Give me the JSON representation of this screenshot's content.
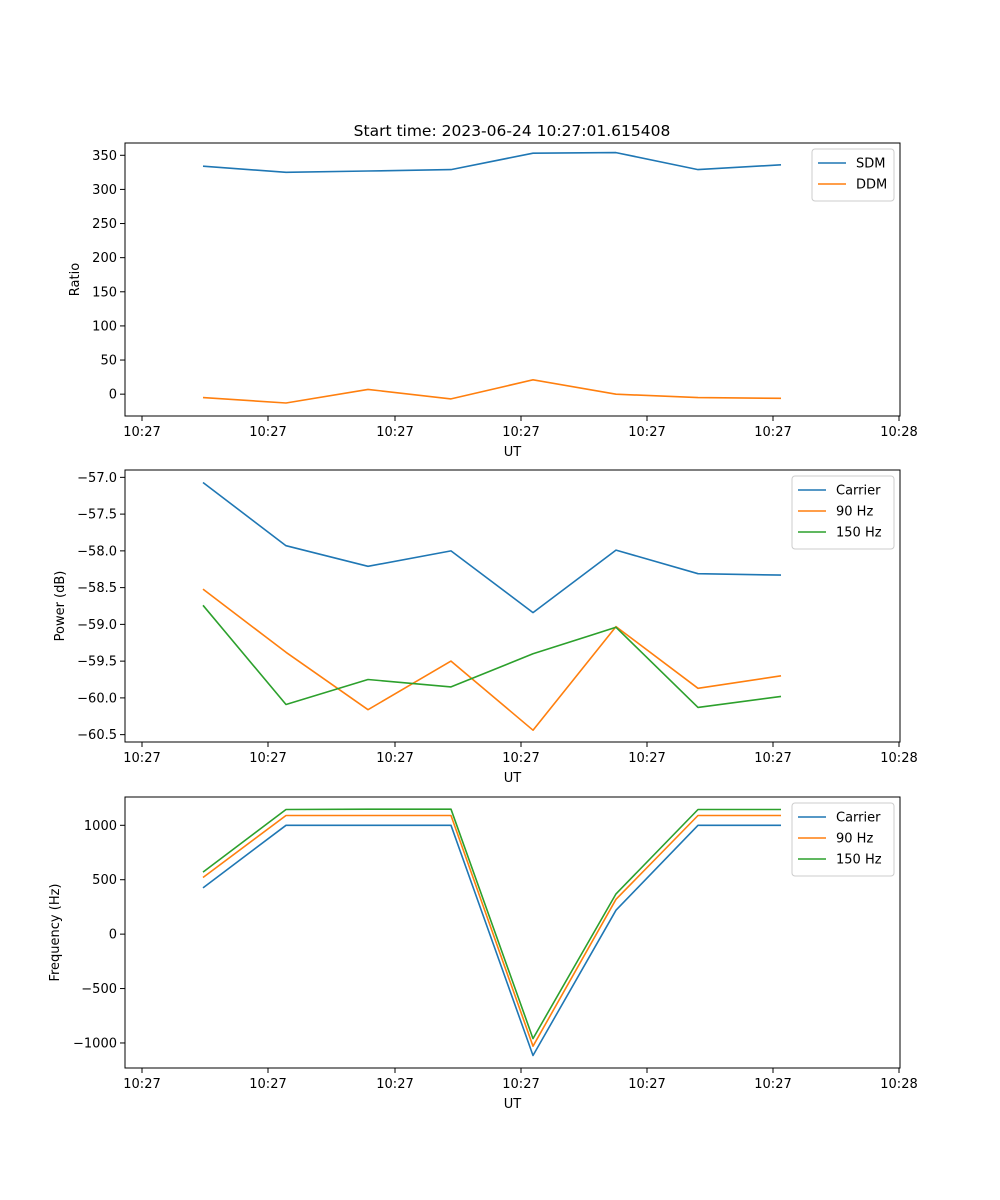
{
  "figure_title": "Start time: 2023-06-24 10:27:01.615408",
  "chart_data": [
    {
      "type": "line",
      "title": "Start time: 2023-06-24 10:27:01.615408",
      "xlabel": "UT",
      "ylabel": "Ratio",
      "x_tick_labels": [
        "10:27",
        "10:27",
        "10:27",
        "10:27",
        "10:27",
        "10:27",
        "10:28"
      ],
      "yticks": [
        0,
        50,
        100,
        150,
        200,
        250,
        300,
        350
      ],
      "ylim": [
        -32,
        368
      ],
      "legend_position": "top-right",
      "grid": false,
      "series": [
        {
          "name": "SDM",
          "color": "#1f77b4",
          "values": [
            334,
            325,
            327,
            329,
            353,
            354,
            329,
            336
          ]
        },
        {
          "name": "DDM",
          "color": "#ff7f0e",
          "values": [
            -5,
            -13,
            7,
            -7,
            21,
            0,
            -5,
            -6
          ]
        }
      ]
    },
    {
      "type": "line",
      "title": "",
      "xlabel": "UT",
      "ylabel": "Power (dB)",
      "x_tick_labels": [
        "10:27",
        "10:27",
        "10:27",
        "10:27",
        "10:27",
        "10:27",
        "10:28"
      ],
      "yticks": [
        -57.0,
        -57.5,
        -58.0,
        -58.5,
        -59.0,
        -59.5,
        -60.0,
        -60.5
      ],
      "ylim": [
        -60.6,
        -56.9
      ],
      "legend_position": "top-right",
      "grid": false,
      "series": [
        {
          "name": "Carrier",
          "color": "#1f77b4",
          "values": [
            -57.07,
            -57.93,
            -58.21,
            -58.0,
            -58.84,
            -57.99,
            -58.31,
            -58.33
          ]
        },
        {
          "name": "90 Hz",
          "color": "#ff7f0e",
          "values": [
            -58.52,
            -59.38,
            -60.16,
            -59.5,
            -60.44,
            -59.03,
            -59.87,
            -59.7
          ]
        },
        {
          "name": "150 Hz",
          "color": "#2ca02c",
          "values": [
            -58.74,
            -60.09,
            -59.75,
            -59.85,
            -59.4,
            -59.04,
            -60.13,
            -59.98
          ]
        }
      ]
    },
    {
      "type": "line",
      "title": "",
      "xlabel": "UT",
      "ylabel": "Frequency (Hz)",
      "x_tick_labels": [
        "10:27",
        "10:27",
        "10:27",
        "10:27",
        "10:27",
        "10:27",
        "10:28"
      ],
      "yticks": [
        1000,
        500,
        0,
        -500,
        -1000
      ],
      "ylim": [
        -1230,
        1260
      ],
      "legend_position": "top-right",
      "grid": false,
      "series": [
        {
          "name": "Carrier",
          "color": "#1f77b4",
          "values": [
            425,
            1000,
            1000,
            1000,
            -1115,
            220,
            1000,
            1000
          ]
        },
        {
          "name": "90 Hz",
          "color": "#ff7f0e",
          "values": [
            520,
            1090,
            1090,
            1090,
            -1030,
            320,
            1090,
            1090
          ]
        },
        {
          "name": "150 Hz",
          "color": "#2ca02c",
          "values": [
            570,
            1145,
            1148,
            1148,
            -960,
            370,
            1145,
            1145
          ]
        }
      ]
    }
  ]
}
